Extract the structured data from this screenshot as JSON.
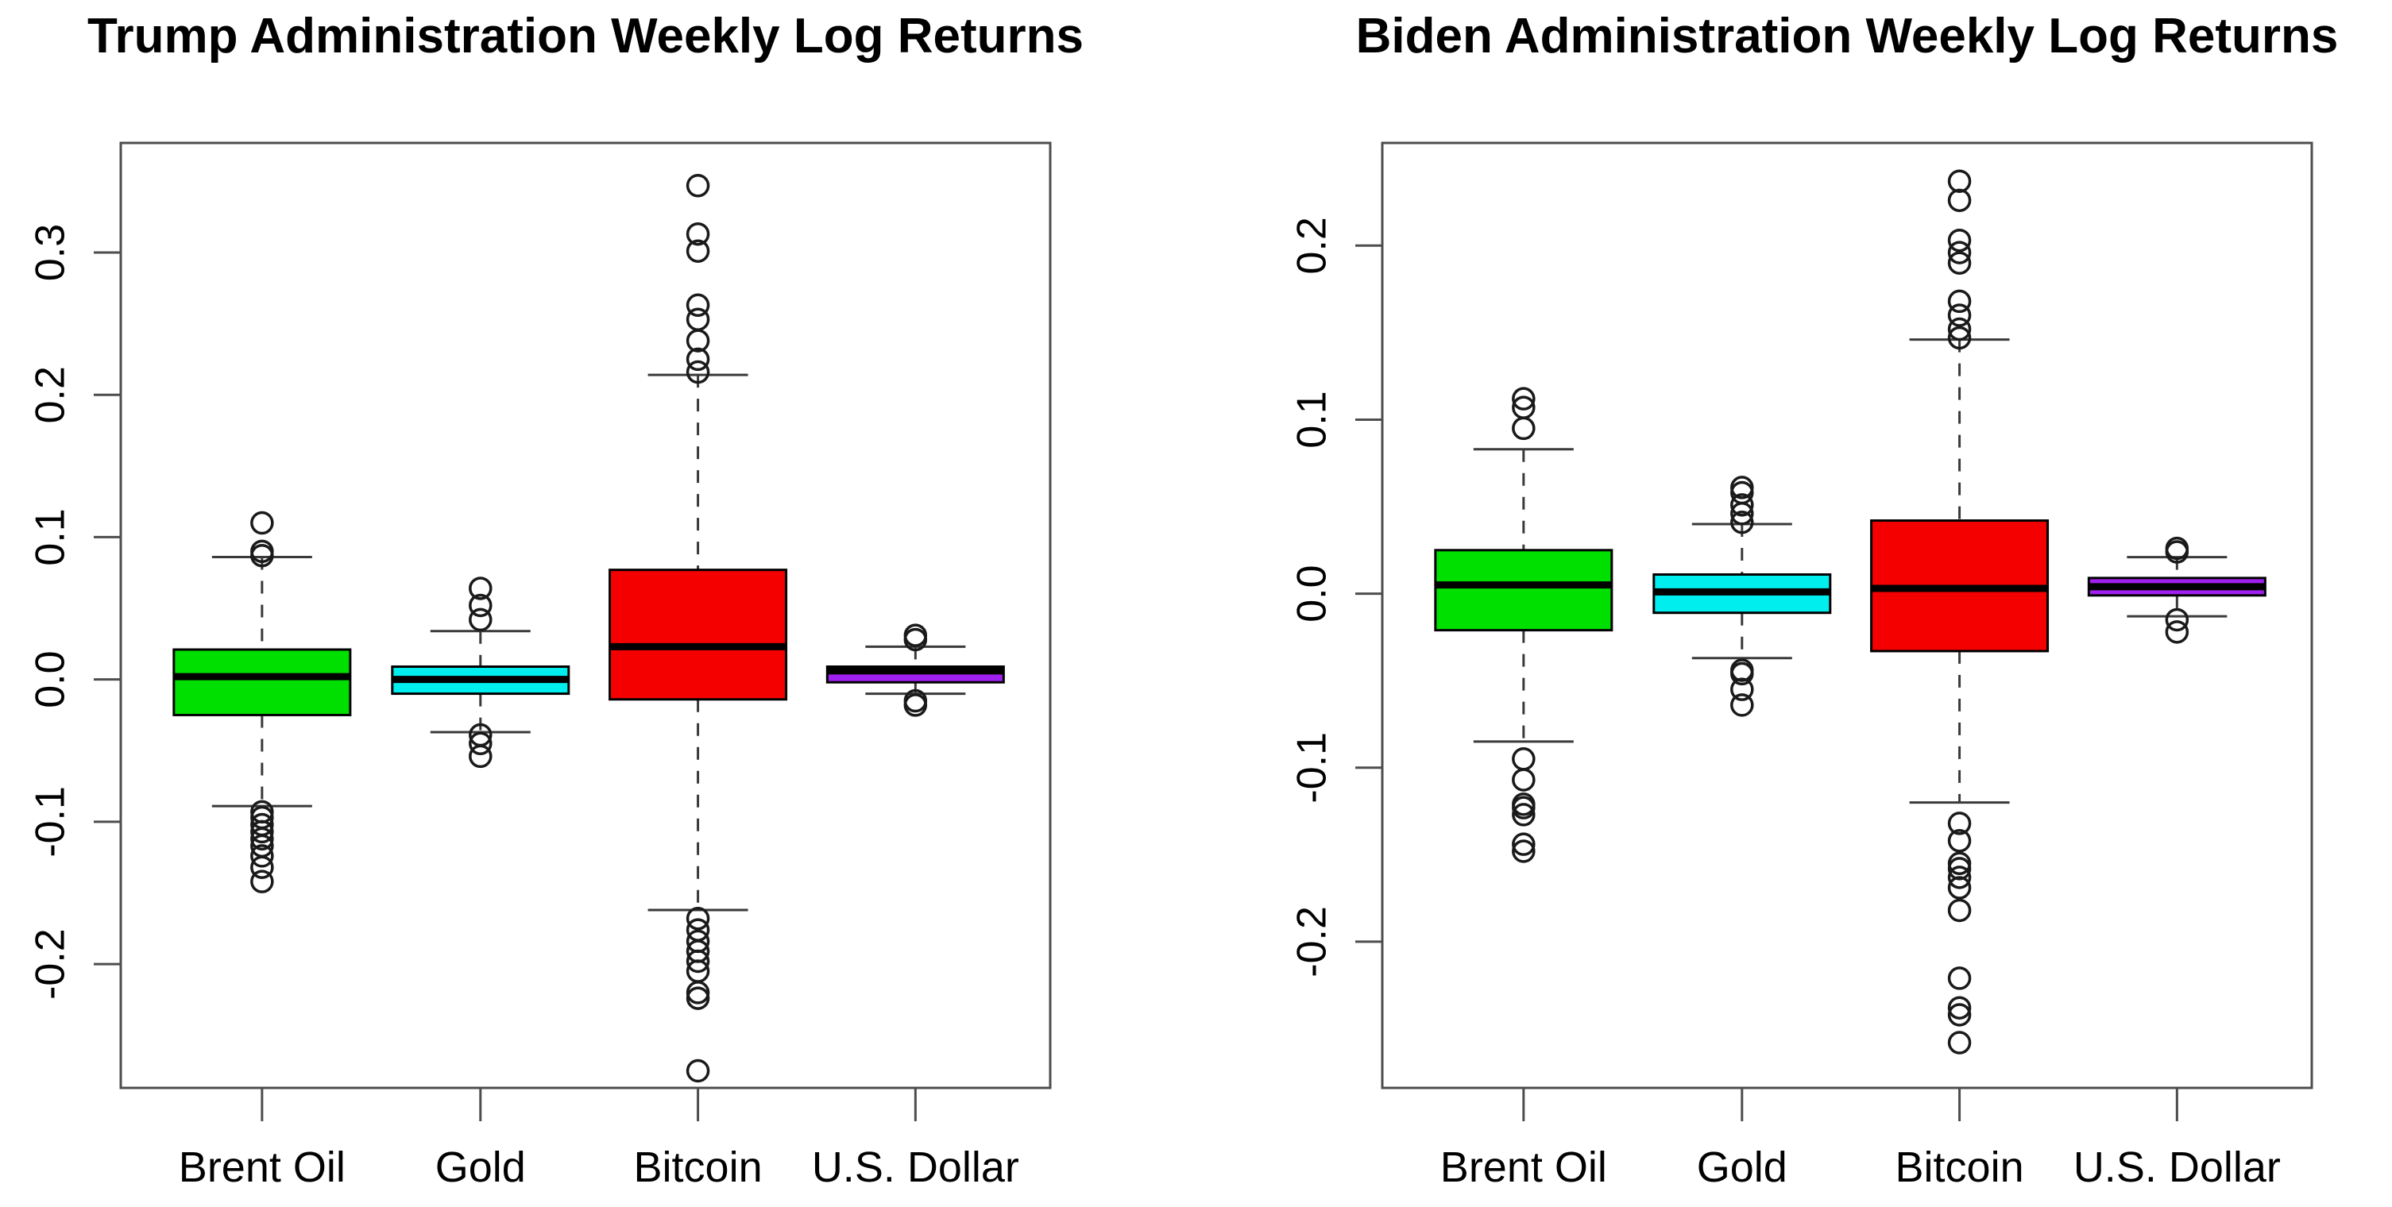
{
  "figure": {
    "background": "#ffffff",
    "frame_color": "#4d4d4d",
    "box_border_color": "#000000",
    "median_color": "#000000",
    "whisker_color": "#3a3a3a",
    "outlier_color": "#1a1a1a"
  },
  "chart_data": [
    {
      "type": "boxplot",
      "title": "Trump Administration Weekly Log Returns",
      "categories": [
        "Brent Oil",
        "Gold",
        "Bitcoin",
        "U.S. Dollar"
      ],
      "xlabel": "",
      "ylabel": "",
      "grid": false,
      "ylim": [
        -0.287,
        0.377
      ],
      "yticks": [
        0.3,
        0.2,
        0.1,
        0.0,
        -0.1,
        -0.2
      ],
      "ytick_labels": [
        "0.3",
        "0.2",
        "0.1",
        "0.0",
        "-0.1",
        "-0.2"
      ],
      "series": [
        {
          "name": "Brent Oil",
          "color": "#00e000",
          "q1": -0.025,
          "median": 0.002,
          "q3": 0.021,
          "whisker_low": -0.089,
          "whisker_high": 0.086,
          "outliers_high": [
            0.087,
            0.09,
            0.11
          ],
          "outliers_low": [
            -0.093,
            -0.097,
            -0.102,
            -0.107,
            -0.112,
            -0.117,
            -0.124,
            -0.132,
            -0.142
          ]
        },
        {
          "name": "Gold",
          "color": "#00eeee",
          "q1": -0.01,
          "median": 0.0,
          "q3": 0.009,
          "whisker_low": -0.037,
          "whisker_high": 0.034,
          "outliers_high": [
            0.042,
            0.052,
            0.064
          ],
          "outliers_low": [
            -0.039,
            -0.045,
            -0.054
          ]
        },
        {
          "name": "Bitcoin",
          "color": "#f40000",
          "q1": -0.014,
          "median": 0.023,
          "q3": 0.077,
          "whisker_low": -0.162,
          "whisker_high": 0.214,
          "outliers_high": [
            0.216,
            0.225,
            0.238,
            0.253,
            0.263,
            0.301,
            0.313,
            0.347
          ],
          "outliers_low": [
            -0.168,
            -0.176,
            -0.184,
            -0.191,
            -0.198,
            -0.205,
            -0.22,
            -0.224,
            -0.275
          ]
        },
        {
          "name": "U.S. Dollar",
          "color": "#a020f0",
          "q1": -0.002,
          "median": 0.006,
          "q3": 0.009,
          "whisker_low": -0.01,
          "whisker_high": 0.023,
          "outliers_high": [
            0.028,
            0.031
          ],
          "outliers_low": [
            -0.015,
            -0.018
          ]
        }
      ]
    },
    {
      "type": "boxplot",
      "title": "Biden Administration Weekly Log Returns",
      "categories": [
        "Brent Oil",
        "Gold",
        "Bitcoin",
        "U.S. Dollar"
      ],
      "xlabel": "",
      "ylabel": "",
      "grid": false,
      "ylim": [
        -0.284,
        0.259
      ],
      "yticks": [
        0.2,
        0.1,
        0.0,
        -0.1,
        -0.2
      ],
      "ytick_labels": [
        "0.2",
        "0.1",
        "0.0",
        "-0.1",
        "-0.2"
      ],
      "series": [
        {
          "name": "Brent Oil",
          "color": "#00e000",
          "q1": -0.021,
          "median": 0.005,
          "q3": 0.025,
          "whisker_low": -0.085,
          "whisker_high": 0.083,
          "outliers_high": [
            0.095,
            0.107,
            0.112
          ],
          "outliers_low": [
            -0.095,
            -0.107,
            -0.121,
            -0.123,
            -0.127,
            -0.144,
            -0.148
          ]
        },
        {
          "name": "Gold",
          "color": "#00eeee",
          "q1": -0.011,
          "median": 0.001,
          "q3": 0.011,
          "whisker_low": -0.037,
          "whisker_high": 0.04,
          "outliers_high": [
            0.041,
            0.046,
            0.051,
            0.058,
            0.061
          ],
          "outliers_low": [
            -0.044,
            -0.046,
            -0.055,
            -0.064
          ]
        },
        {
          "name": "Bitcoin",
          "color": "#f40000",
          "q1": -0.033,
          "median": 0.003,
          "q3": 0.042,
          "whisker_low": -0.12,
          "whisker_high": 0.146,
          "outliers_high": [
            0.147,
            0.152,
            0.16,
            0.168,
            0.19,
            0.196,
            0.203,
            0.226,
            0.237
          ],
          "outliers_low": [
            -0.132,
            -0.142,
            -0.155,
            -0.158,
            -0.163,
            -0.169,
            -0.182,
            -0.221,
            -0.238,
            -0.242,
            -0.258
          ]
        },
        {
          "name": "U.S. Dollar",
          "color": "#a020f0",
          "q1": -0.001,
          "median": 0.004,
          "q3": 0.009,
          "whisker_low": -0.013,
          "whisker_high": 0.021,
          "outliers_high": [
            0.024,
            0.026
          ],
          "outliers_low": [
            -0.015,
            -0.022
          ]
        }
      ]
    }
  ]
}
